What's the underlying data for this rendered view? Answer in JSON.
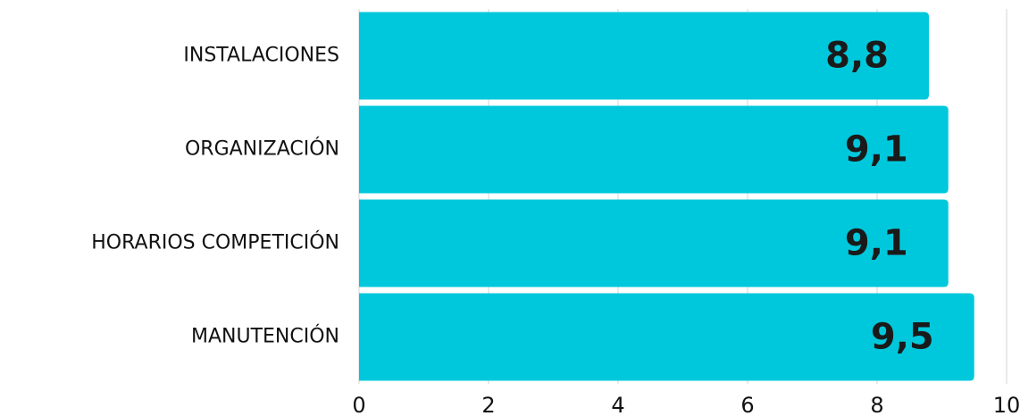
{
  "chart_data": {
    "type": "bar",
    "orientation": "horizontal",
    "categories": [
      "INSTALACIONES",
      "ORGANIZACIÓN",
      "HORARIOS COMPETICIÓN",
      "MANUTENCIÓN"
    ],
    "values": [
      8.8,
      9.1,
      9.1,
      9.5
    ],
    "value_labels": [
      "8,8",
      "9,1",
      "9,1",
      "9,5"
    ],
    "color": "#00c8dc",
    "xlim": [
      0,
      10
    ],
    "xticks": [
      0,
      2,
      4,
      6,
      8,
      10
    ],
    "grid": true
  }
}
